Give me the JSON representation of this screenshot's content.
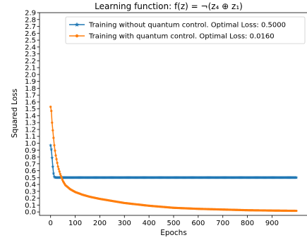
{
  "chart_data": {
    "type": "line",
    "title": "Learning function: f(z) = ¬(z₄ ⊕ z₁)",
    "xlabel": "Epochs",
    "ylabel": "Squared Loss",
    "xlim": [
      -45,
      1045
    ],
    "ylim": [
      -0.05,
      2.9
    ],
    "xticks": [
      0,
      100,
      200,
      300,
      400,
      500,
      600,
      700,
      800,
      900
    ],
    "xtick_labels": [
      "0",
      "100",
      "200",
      "300",
      "400",
      "500",
      "600",
      "700",
      "800",
      "900"
    ],
    "ytick_labels": [
      "0.0",
      "0.1",
      "0.2",
      "0.3",
      "0.4",
      "0.5",
      "0.6",
      "0.7",
      "0.8",
      "0.9",
      "1.0",
      "1.1",
      "1.2",
      "1.3",
      "1.4",
      "1.5",
      "1.6",
      "1.7",
      "1.8",
      "1.9",
      "2.0",
      "2.1",
      "2.2",
      "2.3",
      "2.4",
      "2.5",
      "2.6",
      "2.7",
      "2.8",
      "2.9"
    ],
    "grid": false,
    "legend_position": "top-right",
    "series": [
      {
        "name": "Training without quantum control. Optimal Loss: 0.5000",
        "color": "#1f77b4",
        "marker": "star",
        "x": [
          0,
          2,
          4,
          6,
          8,
          10,
          12,
          14,
          16,
          20,
          30,
          50,
          100,
          200,
          300,
          400,
          500,
          600,
          700,
          800,
          900,
          999
        ],
        "y": [
          0.97,
          0.94,
          0.88,
          0.79,
          0.7,
          0.62,
          0.56,
          0.52,
          0.505,
          0.5,
          0.5,
          0.5,
          0.5,
          0.5,
          0.5,
          0.5,
          0.5,
          0.5,
          0.5,
          0.5,
          0.5,
          0.5
        ]
      },
      {
        "name": "Training with quantum control. Optimal Loss: 0.0160",
        "color": "#ff7f0e",
        "marker": "dot",
        "x": [
          0,
          3,
          6,
          10,
          15,
          20,
          30,
          40,
          50,
          60,
          80,
          100,
          130,
          160,
          200,
          250,
          300,
          400,
          500,
          600,
          700,
          800,
          900,
          999
        ],
        "y": [
          1.53,
          1.47,
          1.3,
          1.15,
          0.97,
          0.84,
          0.66,
          0.54,
          0.45,
          0.39,
          0.33,
          0.29,
          0.25,
          0.22,
          0.19,
          0.16,
          0.13,
          0.09,
          0.06,
          0.045,
          0.035,
          0.025,
          0.02,
          0.016
        ]
      }
    ]
  }
}
